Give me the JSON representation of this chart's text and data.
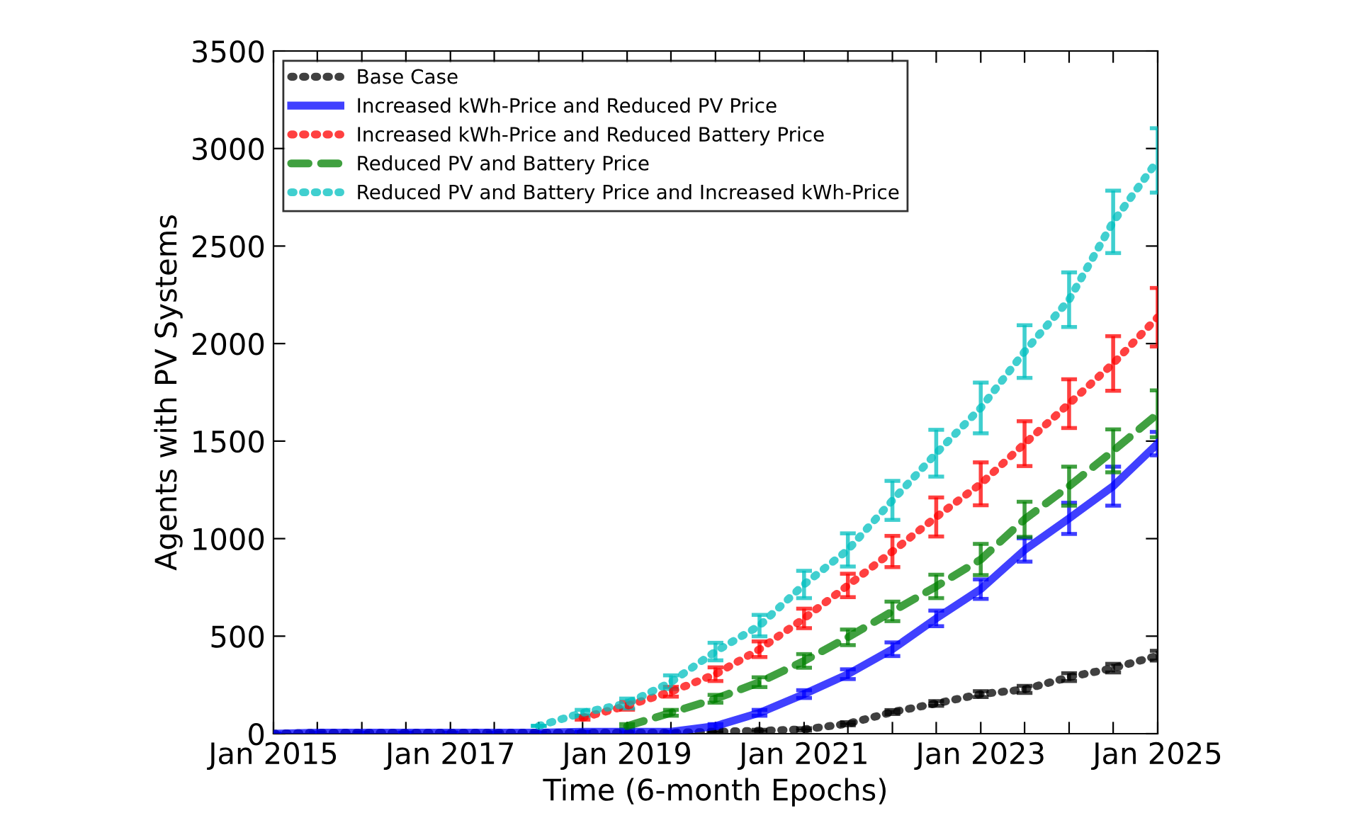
{
  "chart_data": {
    "type": "line",
    "xlabel": "Time (6-month Epochs)",
    "ylabel": "Agents with PV Systems",
    "x": [
      "2015-01",
      "2015-07",
      "2016-01",
      "2016-07",
      "2017-01",
      "2017-07",
      "2018-01",
      "2018-07",
      "2019-01",
      "2019-07",
      "2020-01",
      "2020-07",
      "2021-01",
      "2021-07",
      "2022-01",
      "2022-07",
      "2023-01",
      "2023-07",
      "2024-01",
      "2024-07",
      "2025-01"
    ],
    "series": [
      {
        "name": "Base Case",
        "color": "#000000",
        "line_style": "dotted",
        "values": [
          0,
          5,
          5,
          5,
          5,
          5,
          5,
          5,
          5,
          5,
          10,
          15,
          22,
          51,
          111,
          155,
          203,
          227,
          290,
          336,
          400
        ],
        "errors": [
          null,
          null,
          null,
          null,
          null,
          null,
          null,
          null,
          null,
          null,
          5,
          5,
          6,
          8,
          10,
          12,
          15,
          18,
          20,
          22,
          25
        ]
      },
      {
        "name": "Increased kWh-Price and Reduced PV Price",
        "color": "#0000ff",
        "line_style": "solid",
        "values": [
          0,
          5,
          5,
          5,
          5,
          5,
          5,
          10,
          10,
          10,
          39,
          107,
          203,
          305,
          433,
          591,
          741,
          942,
          1104,
          1269,
          1487
        ],
        "errors": [
          null,
          null,
          null,
          null,
          null,
          null,
          null,
          null,
          null,
          null,
          10,
          15,
          20,
          25,
          35,
          40,
          50,
          60,
          80,
          100,
          60
        ]
      },
      {
        "name": "Increased kWh-Price and Reduced Battery Price",
        "color": "#ff0000",
        "line_style": "dotted",
        "values": [
          null,
          null,
          null,
          null,
          null,
          null,
          null,
          82,
          143,
          215,
          305,
          433,
          591,
          760,
          934,
          1111,
          1281,
          1487,
          1692,
          1898,
          2135
        ],
        "errors": [
          null,
          null,
          null,
          null,
          null,
          null,
          null,
          10,
          20,
          25,
          35,
          40,
          50,
          60,
          80,
          100,
          110,
          115,
          125,
          140,
          150
        ]
      },
      {
        "name": "Reduced PV and Battery Price",
        "color": "#008000",
        "line_style": "dashed",
        "values": [
          null,
          null,
          null,
          null,
          null,
          null,
          null,
          null,
          39,
          107,
          179,
          264,
          373,
          494,
          627,
          755,
          893,
          1099,
          1269,
          1450,
          1640
        ],
        "errors": [
          null,
          null,
          null,
          null,
          null,
          null,
          null,
          null,
          10,
          15,
          20,
          25,
          35,
          40,
          50,
          60,
          80,
          90,
          100,
          110,
          120
        ]
      },
      {
        "name": "Reduced PV and Battery Price and Increased kWh-Price",
        "color": "#00bfbf",
        "line_style": "dotted",
        "values": [
          null,
          null,
          null,
          null,
          null,
          null,
          40,
          107,
          155,
          264,
          421,
          554,
          765,
          942,
          1196,
          1438,
          1670,
          1959,
          2225,
          2624,
          2939
        ],
        "errors": [
          null,
          null,
          null,
          null,
          null,
          null,
          null,
          15,
          25,
          35,
          45,
          55,
          70,
          85,
          100,
          120,
          130,
          135,
          140,
          160,
          165
        ]
      }
    ],
    "xlim": [
      "2015-01",
      "2025-01"
    ],
    "xticks": [
      {
        "value": "2015-01",
        "label": "Jan 2015"
      },
      {
        "value": "2015-07",
        "label": null
      },
      {
        "value": "2016-01",
        "label": null
      },
      {
        "value": "2016-07",
        "label": null
      },
      {
        "value": "2017-01",
        "label": "Jan 2017"
      },
      {
        "value": "2017-07",
        "label": null
      },
      {
        "value": "2018-01",
        "label": null
      },
      {
        "value": "2018-07",
        "label": null
      },
      {
        "value": "2019-01",
        "label": "Jan 2019"
      },
      {
        "value": "2019-07",
        "label": null
      },
      {
        "value": "2020-01",
        "label": null
      },
      {
        "value": "2020-07",
        "label": null
      },
      {
        "value": "2021-01",
        "label": "Jan 2021"
      },
      {
        "value": "2021-07",
        "label": null
      },
      {
        "value": "2022-01",
        "label": null
      },
      {
        "value": "2022-07",
        "label": null
      },
      {
        "value": "2023-01",
        "label": "Jan 2023"
      },
      {
        "value": "2023-07",
        "label": null
      },
      {
        "value": "2024-01",
        "label": null
      },
      {
        "value": "2024-07",
        "label": null
      },
      {
        "value": "2025-01",
        "label": "Jan 2025"
      }
    ],
    "ylim": [
      0,
      3500
    ],
    "yticks": [
      0,
      500,
      1000,
      1500,
      2000,
      2500,
      3000,
      3500
    ],
    "grid": false,
    "legend": "top left"
  }
}
